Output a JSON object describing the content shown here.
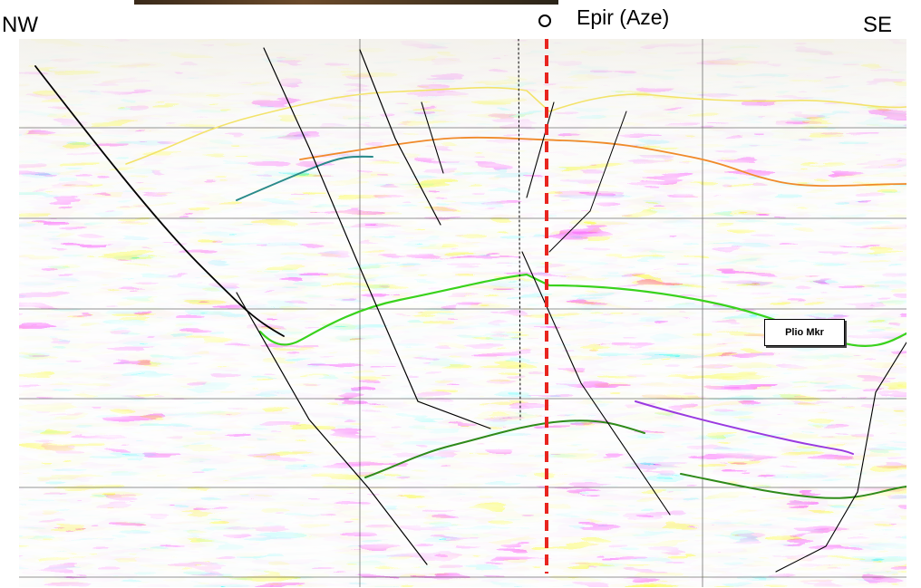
{
  "labels": {
    "left": "NW",
    "right": "SE",
    "well": "Epir (Aze)"
  },
  "annotations": {
    "horizon_marker": "Plio Mkr"
  },
  "colors": {
    "well_line": "#e8251f",
    "horizon_plio": "#39d21c",
    "horizon_upper_yellow": "#f3e36a",
    "horizon_upper_orange": "#f08a2a",
    "horizon_deep_green": "#2f8a1a",
    "horizon_purple": "#9a3ae0",
    "horizon_teal": "#2a8a8a",
    "fault": "#000000",
    "seismic_red": "#b8332a",
    "seismic_black": "#111111"
  }
}
